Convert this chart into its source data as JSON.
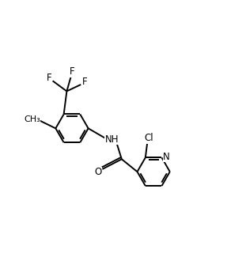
{
  "bg_color": "#ffffff",
  "line_color": "#000000",
  "line_width": 1.4,
  "font_size": 8.5,
  "xlim": [
    -0.5,
    5.5
  ],
  "ylim": [
    -0.3,
    5.5
  ]
}
